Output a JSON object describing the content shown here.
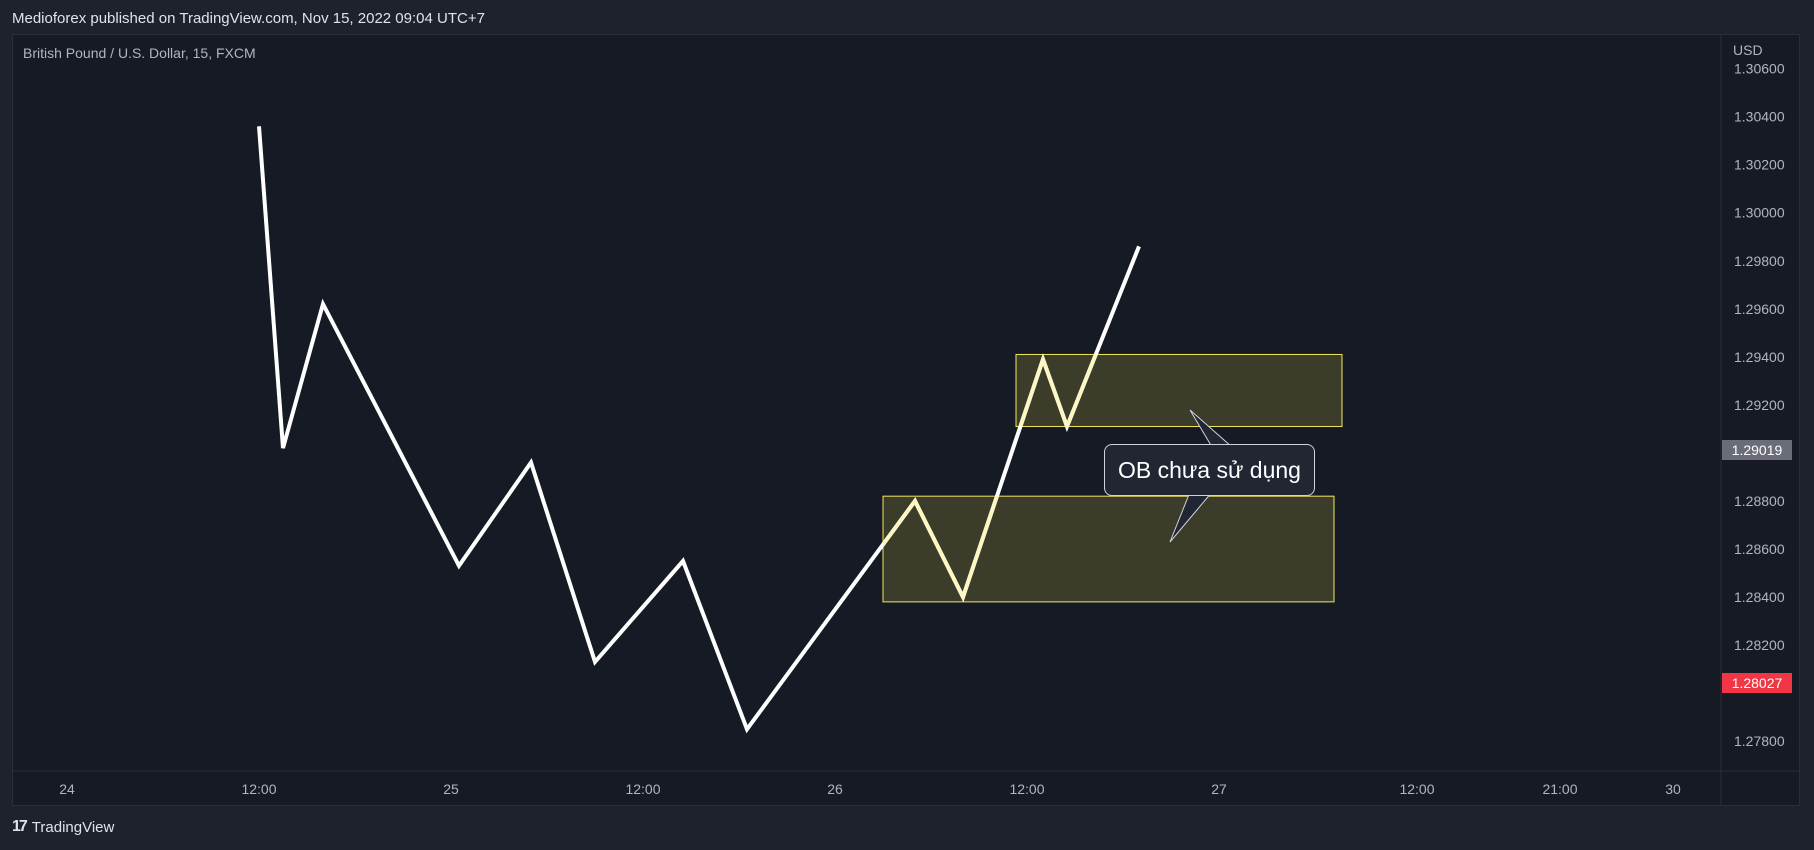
{
  "header": {
    "publish_text": "Medioforex published on TradingView.com, Nov 15, 2022 09:04 UTC+7"
  },
  "footer": {
    "brand": "TradingView",
    "logo_icon": "tradingview-logo-icon"
  },
  "colors": {
    "background": "#161a25",
    "line": "#ffffff",
    "zone_fill": "#3b3d2a",
    "zone_border": "#f4e65a",
    "current_price": "#f23645",
    "crosshair_price": "#6a6d78"
  },
  "chart_data": {
    "type": "line",
    "title": "British Pound / U.S. Dollar, 15, FXCM",
    "currency": "USD",
    "x_ticks": [
      "24",
      "12:00",
      "25",
      "12:00",
      "26",
      "12:00",
      "27",
      "12:00",
      "21:00",
      "30"
    ],
    "y_ticks": [
      "1.30600",
      "1.30400",
      "1.30200",
      "1.30000",
      "1.29800",
      "1.29600",
      "1.29400",
      "1.29200",
      "1.28800",
      "1.28600",
      "1.28400",
      "1.28200",
      "1.27800"
    ],
    "ylim": [
      1.2768,
      1.3074
    ],
    "series": [
      {
        "points": [
          {
            "x": "Nov 24 12:00",
            "y": 1.3036
          },
          {
            "x": "Nov 24 13:30",
            "y": 1.2902
          },
          {
            "x": "Nov 24 16:00",
            "y": 1.2962
          },
          {
            "x": "Nov 25 00:30",
            "y": 1.2853
          },
          {
            "x": "Nov 25 05:00",
            "y": 1.2896
          },
          {
            "x": "Nov 25 09:00",
            "y": 1.2813
          },
          {
            "x": "Nov 25 14:30",
            "y": 1.2855
          },
          {
            "x": "Nov 25 18:30",
            "y": 1.2785
          },
          {
            "x": "Nov 26 05:00",
            "y": 1.288
          },
          {
            "x": "Nov 26 08:00",
            "y": 1.284
          },
          {
            "x": "Nov 26 13:00",
            "y": 1.2939
          },
          {
            "x": "Nov 26 14:30",
            "y": 1.2911
          },
          {
            "x": "Nov 26 19:00",
            "y": 1.2986
          }
        ]
      }
    ],
    "price_labels": {
      "crosshair": "1.29019",
      "current": "1.28027"
    },
    "zones": [
      {
        "y_top": 1.2941,
        "y_bottom": 1.2911
      },
      {
        "y_top": 1.2882,
        "y_bottom": 1.2838
      }
    ],
    "annotation": "OB chưa sử dụng"
  }
}
